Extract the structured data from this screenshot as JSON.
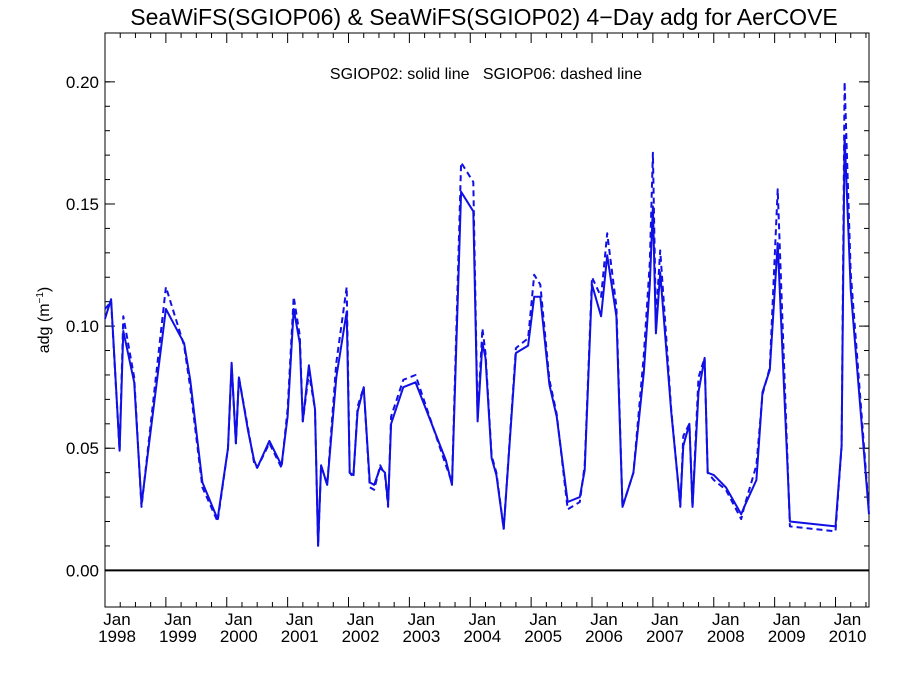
{
  "chart_data": {
    "type": "line",
    "title": "SeaWiFS(SGIOP06) & SeaWiFS(SGIOP02) 4−Day adg for AerCOVE",
    "annotation": "SGIOP02: solid line   SGIOP06: dashed line",
    "ylabel_prefix": "adg (m",
    "ylabel_exp": "−1",
    "ylabel_suffix": ")",
    "xlabel": "",
    "xlim": [
      1998.0,
      2010.55
    ],
    "ylim": [
      -0.015,
      0.22
    ],
    "y_ticks": [
      {
        "value": 0.0,
        "label": "0.00"
      },
      {
        "value": 0.05,
        "label": "0.05"
      },
      {
        "value": 0.1,
        "label": "0.10"
      },
      {
        "value": 0.15,
        "label": "0.15"
      },
      {
        "value": 0.2,
        "label": "0.20"
      }
    ],
    "x_ticks": [
      {
        "value": 1998,
        "month": "Jan",
        "year": "1998"
      },
      {
        "value": 1999,
        "month": "Jan",
        "year": "1999"
      },
      {
        "value": 2000,
        "month": "Jan",
        "year": "2000"
      },
      {
        "value": 2001,
        "month": "Jan",
        "year": "2001"
      },
      {
        "value": 2002,
        "month": "Jan",
        "year": "2002"
      },
      {
        "value": 2003,
        "month": "Jan",
        "year": "2003"
      },
      {
        "value": 2004,
        "month": "Jan",
        "year": "2004"
      },
      {
        "value": 2005,
        "month": "Jan",
        "year": "2005"
      },
      {
        "value": 2006,
        "month": "Jan",
        "year": "2006"
      },
      {
        "value": 2007,
        "month": "Jan",
        "year": "2007"
      },
      {
        "value": 2008,
        "month": "Jan",
        "year": "2008"
      },
      {
        "value": 2009,
        "month": "Jan",
        "year": "2009"
      },
      {
        "value": 2010,
        "month": "Jan",
        "year": "2010"
      }
    ],
    "zero_line": 0.0,
    "line_color": "#1010e6",
    "axis_color": "#000000",
    "series": [
      {
        "name": "SGIOP02",
        "style": "solid",
        "x": [
          1998.0,
          1998.1,
          1998.24,
          1998.3,
          1998.48,
          1998.6,
          1999.0,
          1999.3,
          1999.4,
          1999.6,
          1999.85,
          2000.02,
          2000.08,
          2000.15,
          2000.2,
          2000.35,
          2000.45,
          2000.5,
          2000.7,
          2000.9,
          2001.0,
          2001.1,
          2001.2,
          2001.25,
          2001.35,
          2001.45,
          2001.5,
          2001.55,
          2001.65,
          2001.8,
          2001.97,
          2002.02,
          2002.08,
          2002.15,
          2002.25,
          2002.35,
          2002.42,
          2002.52,
          2002.6,
          2002.65,
          2002.7,
          2002.9,
          2003.1,
          2003.6,
          2003.7,
          2003.85,
          2004.05,
          2004.12,
          2004.2,
          2004.25,
          2004.35,
          2004.43,
          2004.55,
          2004.75,
          2004.95,
          2005.05,
          2005.15,
          2005.3,
          2005.42,
          2005.6,
          2005.8,
          2005.88,
          2006.0,
          2006.15,
          2006.25,
          2006.4,
          2006.5,
          2006.68,
          2006.85,
          2006.95,
          2007.0,
          2007.05,
          2007.12,
          2007.3,
          2007.45,
          2007.5,
          2007.6,
          2007.65,
          2007.75,
          2007.85,
          2007.9,
          2008.0,
          2008.2,
          2008.45,
          2008.5,
          2008.7,
          2008.8,
          2008.92,
          2009.05,
          2009.25,
          2010.0,
          2010.1,
          2010.15,
          2010.25,
          2010.55
        ],
        "y": [
          0.103,
          0.111,
          0.049,
          0.098,
          0.077,
          0.027,
          0.107,
          0.093,
          0.078,
          0.036,
          0.021,
          0.05,
          0.085,
          0.052,
          0.079,
          0.057,
          0.045,
          0.042,
          0.053,
          0.043,
          0.063,
          0.107,
          0.093,
          0.061,
          0.084,
          0.066,
          0.01,
          0.043,
          0.035,
          0.079,
          0.106,
          0.04,
          0.039,
          0.065,
          0.075,
          0.036,
          0.035,
          0.042,
          0.04,
          0.027,
          0.06,
          0.075,
          0.077,
          0.045,
          0.035,
          0.155,
          0.147,
          0.061,
          0.093,
          0.087,
          0.046,
          0.039,
          0.017,
          0.089,
          0.092,
          0.112,
          0.112,
          0.076,
          0.063,
          0.028,
          0.03,
          0.041,
          0.117,
          0.104,
          0.129,
          0.104,
          0.026,
          0.04,
          0.081,
          0.117,
          0.149,
          0.097,
          0.122,
          0.065,
          0.027,
          0.051,
          0.06,
          0.026,
          0.073,
          0.087,
          0.04,
          0.039,
          0.034,
          0.023,
          0.026,
          0.037,
          0.073,
          0.082,
          0.134,
          0.02,
          0.018,
          0.051,
          0.178,
          0.115,
          0.023
        ]
      },
      {
        "name": "SGIOP06",
        "style": "dashed",
        "x": [
          1998.0,
          1998.1,
          1998.24,
          1998.3,
          1998.48,
          1998.6,
          1999.0,
          1999.3,
          1999.4,
          1999.6,
          1999.85,
          2000.02,
          2000.08,
          2000.15,
          2000.2,
          2000.35,
          2000.45,
          2000.5,
          2000.7,
          2000.9,
          2001.0,
          2001.1,
          2001.2,
          2001.25,
          2001.35,
          2001.45,
          2001.5,
          2001.55,
          2001.65,
          2001.8,
          2001.97,
          2002.02,
          2002.08,
          2002.15,
          2002.25,
          2002.35,
          2002.42,
          2002.52,
          2002.6,
          2002.65,
          2002.7,
          2002.9,
          2003.1,
          2003.6,
          2003.7,
          2003.85,
          2004.05,
          2004.12,
          2004.2,
          2004.25,
          2004.35,
          2004.43,
          2004.55,
          2004.75,
          2004.95,
          2005.05,
          2005.15,
          2005.3,
          2005.42,
          2005.6,
          2005.8,
          2005.88,
          2006.0,
          2006.15,
          2006.25,
          2006.4,
          2006.5,
          2006.68,
          2006.85,
          2006.95,
          2007.0,
          2007.05,
          2007.12,
          2007.3,
          2007.45,
          2007.5,
          2007.6,
          2007.65,
          2007.75,
          2007.85,
          2007.9,
          2008.0,
          2008.2,
          2008.45,
          2008.5,
          2008.7,
          2008.8,
          2008.92,
          2009.05,
          2009.25,
          2010.0,
          2010.1,
          2010.15,
          2010.25,
          2010.55
        ],
        "y": [
          0.107,
          0.11,
          0.049,
          0.104,
          0.079,
          0.026,
          0.116,
          0.092,
          0.075,
          0.034,
          0.02,
          0.05,
          0.084,
          0.052,
          0.079,
          0.058,
          0.044,
          0.042,
          0.052,
          0.042,
          0.066,
          0.112,
          0.096,
          0.061,
          0.081,
          0.066,
          0.01,
          0.043,
          0.035,
          0.085,
          0.116,
          0.04,
          0.038,
          0.067,
          0.075,
          0.034,
          0.033,
          0.043,
          0.039,
          0.026,
          0.063,
          0.078,
          0.08,
          0.043,
          0.036,
          0.167,
          0.159,
          0.062,
          0.099,
          0.089,
          0.047,
          0.04,
          0.017,
          0.091,
          0.095,
          0.121,
          0.117,
          0.078,
          0.064,
          0.025,
          0.028,
          0.043,
          0.12,
          0.112,
          0.138,
          0.108,
          0.026,
          0.04,
          0.088,
          0.126,
          0.171,
          0.102,
          0.131,
          0.066,
          0.026,
          0.055,
          0.06,
          0.026,
          0.079,
          0.087,
          0.04,
          0.037,
          0.033,
          0.021,
          0.026,
          0.043,
          0.072,
          0.083,
          0.156,
          0.018,
          0.016,
          0.051,
          0.2,
          0.122,
          0.024
        ]
      }
    ]
  }
}
